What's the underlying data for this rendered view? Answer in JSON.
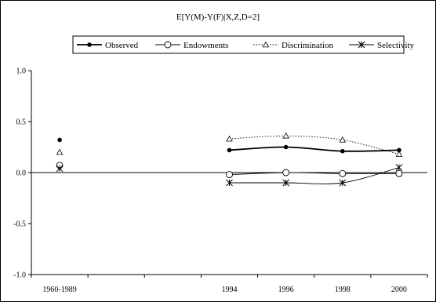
{
  "chart_data": {
    "type": "line",
    "title": "E[Y(M)-Y(F)|X,Z,D=2]",
    "categories": [
      "1960-1989",
      "",
      "",
      "1994",
      "1996",
      "1998",
      "2000"
    ],
    "ylim": [
      -1.0,
      1.0
    ],
    "yticks": [
      "1.0",
      "0.5",
      "0.0",
      "-0.5",
      "-1.0"
    ],
    "ytick_values": [
      1.0,
      0.5,
      0.0,
      -0.5,
      -1.0
    ],
    "grid": false,
    "legend_position": "top",
    "series": [
      {
        "name": "Observed",
        "marker": "filled-circle",
        "line": "solid-thick",
        "values": [
          0.32,
          null,
          null,
          0.22,
          0.25,
          0.21,
          0.22
        ]
      },
      {
        "name": "Endowments",
        "marker": "open-circle",
        "line": "solid",
        "values": [
          0.07,
          null,
          null,
          -0.02,
          0.0,
          -0.01,
          -0.01
        ]
      },
      {
        "name": "Discrimination",
        "marker": "open-triangle",
        "line": "dotted",
        "values": [
          0.2,
          null,
          null,
          0.33,
          0.36,
          0.32,
          0.18
        ]
      },
      {
        "name": "Selectivity",
        "marker": "asterisk",
        "line": "solid",
        "values": [
          0.04,
          null,
          null,
          -0.1,
          -0.1,
          -0.1,
          0.05
        ]
      }
    ]
  }
}
